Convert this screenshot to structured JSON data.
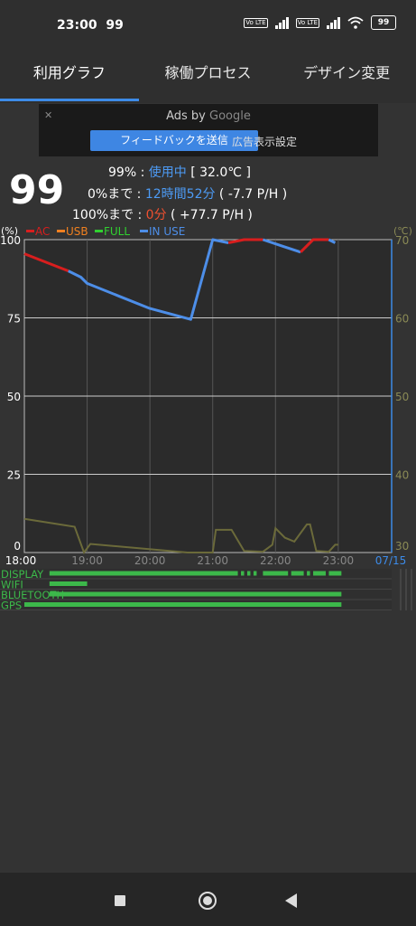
{
  "status_bar": {
    "time": "23:00",
    "notif": "99",
    "battery": "99",
    "volte": "Vo LTE"
  },
  "tabs": [
    {
      "label": "利用グラフ"
    },
    {
      "label": "稼働プロセス"
    },
    {
      "label": "デザイン変更"
    }
  ],
  "ad": {
    "title_prefix": "Ads by",
    "title_brand": "Google",
    "feedback": "フィードバックを送信",
    "settings": "広告表示設定"
  },
  "battery": {
    "level": "99",
    "line1": {
      "pct": "99%",
      "sep": " : ",
      "state": "使用中",
      "temp": " [ 32.0℃ ]"
    },
    "line2": {
      "label": "0%まで",
      "sep": " : ",
      "time": "12時間52分",
      "rate": " ( -7.7 P/H )"
    },
    "line3": {
      "label": "100%まで",
      "sep": " : ",
      "time": "0分",
      "rate": " ( +77.7 P/H )"
    }
  },
  "chart_data": {
    "type": "line",
    "left_unit": "(%)",
    "right_unit": "(℃)",
    "legend": [
      {
        "name": "AC",
        "color": "#d81e1e"
      },
      {
        "name": "USB",
        "color": "#f08020"
      },
      {
        "name": "FULL",
        "color": "#30d030"
      },
      {
        "name": "IN USE",
        "color": "#4d8ee8"
      }
    ],
    "y_ticks": [
      "100",
      "75",
      "50",
      "25",
      "0"
    ],
    "y_values": [
      100,
      75,
      50,
      25,
      0
    ],
    "y_right_ticks": [
      "70",
      "60",
      "50",
      "40",
      "30"
    ],
    "x_ticks": [
      "18:00",
      "19:00",
      "20:00",
      "21:00",
      "22:00",
      "23:00"
    ],
    "x_end_label": "07/15",
    "xlim_hours": [
      18.0,
      23.85
    ],
    "ylim": [
      0,
      100
    ],
    "battery_series": [
      {
        "state": "AC",
        "points": [
          [
            18.0,
            95.5
          ],
          [
            18.7,
            90
          ]
        ]
      },
      {
        "state": "IN USE",
        "points": [
          [
            18.7,
            90
          ],
          [
            18.9,
            88
          ],
          [
            19.0,
            86
          ],
          [
            19.5,
            82
          ],
          [
            20.0,
            78
          ],
          [
            20.65,
            74.5
          ],
          [
            21.0,
            100
          ],
          [
            21.25,
            99
          ]
        ]
      },
      {
        "state": "AC",
        "points": [
          [
            21.25,
            99
          ],
          [
            21.5,
            100
          ],
          [
            21.8,
            100
          ]
        ]
      },
      {
        "state": "IN USE",
        "points": [
          [
            21.8,
            100
          ],
          [
            22.1,
            98
          ],
          [
            22.4,
            96
          ]
        ]
      },
      {
        "state": "AC",
        "points": [
          [
            22.4,
            96
          ],
          [
            22.6,
            100
          ],
          [
            22.85,
            100
          ]
        ]
      },
      {
        "state": "IN USE",
        "points": [
          [
            22.85,
            100
          ],
          [
            22.95,
            99
          ]
        ]
      }
    ],
    "temperature_series": {
      "name": "temperature",
      "color": "#6b6a3a",
      "points": [
        [
          18.0,
          34.3
        ],
        [
          18.8,
          33.3
        ],
        [
          18.95,
          30.0
        ],
        [
          19.05,
          31.1
        ],
        [
          20.6,
          30.0
        ],
        [
          21.0,
          30.0
        ],
        [
          21.05,
          32.9
        ],
        [
          21.3,
          32.9
        ],
        [
          21.5,
          30.2
        ],
        [
          21.8,
          30.1
        ],
        [
          21.95,
          31.0
        ],
        [
          22.0,
          33.1
        ],
        [
          22.15,
          31.9
        ],
        [
          22.3,
          31.4
        ],
        [
          22.5,
          33.6
        ],
        [
          22.55,
          33.6
        ],
        [
          22.65,
          30.2
        ],
        [
          22.85,
          30.1
        ],
        [
          22.95,
          31.0
        ],
        [
          23.0,
          31.0
        ]
      ]
    },
    "activity": [
      {
        "name": "DISPLAY",
        "color": "#3cb84a",
        "segments": [
          [
            18.4,
            21.4
          ],
          [
            21.45,
            21.5
          ],
          [
            21.55,
            21.6
          ],
          [
            21.65,
            21.7
          ],
          [
            21.8,
            22.2
          ],
          [
            22.25,
            22.45
          ],
          [
            22.5,
            22.55
          ],
          [
            22.6,
            22.8
          ],
          [
            22.85,
            23.05
          ]
        ]
      },
      {
        "name": "WIFI",
        "color": "#3cb84a",
        "segments": [
          [
            18.4,
            19.0
          ]
        ]
      },
      {
        "name": "BLUETOOTH",
        "color": "#3cb84a",
        "segments": [
          [
            18.4,
            23.05
          ]
        ]
      },
      {
        "name": "GPS",
        "color": "#3cb84a",
        "segments": [
          [
            18.0,
            23.05
          ]
        ]
      }
    ]
  }
}
